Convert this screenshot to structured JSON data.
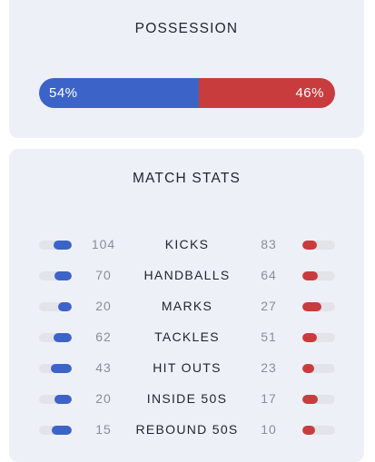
{
  "possession": {
    "title": "POSSESSION",
    "home_label": "54%",
    "away_label": "46%",
    "home_share": 0.54,
    "home_color": "#3c64c8",
    "away_color": "#c93c3e"
  },
  "match_stats": {
    "title": "MATCH STATS",
    "rows": [
      {
        "label": "KICKS",
        "home": "104",
        "away": "83"
      },
      {
        "label": "HANDBALLS",
        "home": "70",
        "away": "64"
      },
      {
        "label": "MARKS",
        "home": "20",
        "away": "27"
      },
      {
        "label": "TACKLES",
        "home": "62",
        "away": "51"
      },
      {
        "label": "HIT OUTS",
        "home": "43",
        "away": "23"
      },
      {
        "label": "INSIDE 50S",
        "home": "20",
        "away": "17"
      },
      {
        "label": "REBOUND 50S",
        "home": "15",
        "away": "10"
      }
    ]
  }
}
